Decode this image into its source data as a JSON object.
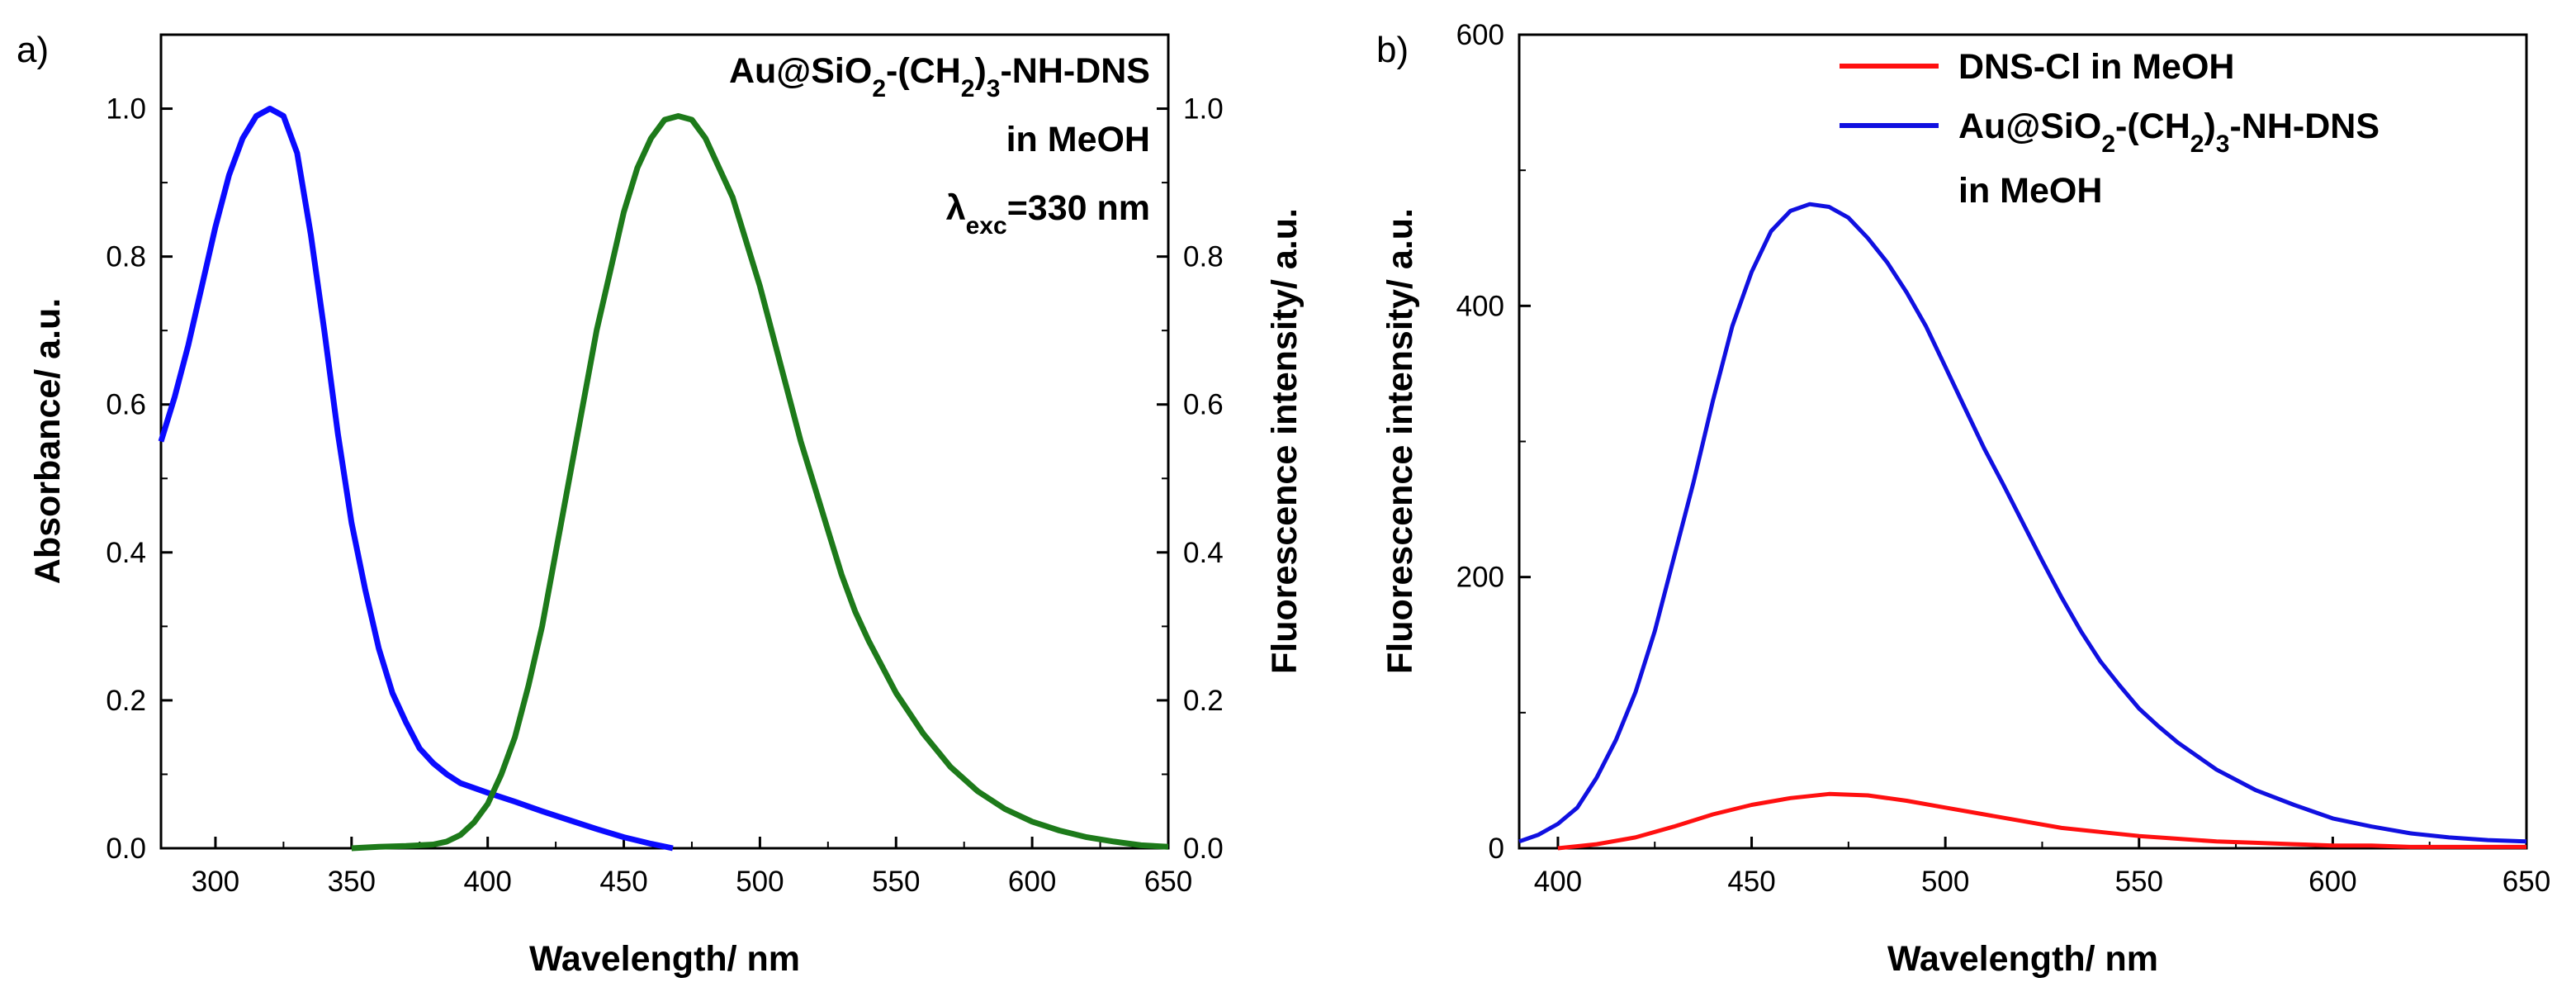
{
  "chart_data": [
    {
      "panel_label": "a)",
      "type": "line",
      "xlabel": "Wavelength/ nm",
      "ylabel_left": "Absorbance/ a.u.",
      "ylabel_right": "Fluorescence intensity/ a.u.",
      "xlim": [
        280,
        650
      ],
      "ylim_left": [
        0,
        1.1
      ],
      "ylim_right": [
        0,
        1.1
      ],
      "x_ticks": [
        "300",
        "350",
        "400",
        "450",
        "500",
        "550",
        "600",
        "650"
      ],
      "y_ticks_left": [
        "0.0",
        "0.2",
        "0.4",
        "0.6",
        "0.8",
        "1.0"
      ],
      "y_ticks_right": [
        "0.0",
        "0.2",
        "0.4",
        "0.6",
        "0.8",
        "1.0"
      ],
      "annotation": {
        "line1_main": "Au@SiO",
        "line1_sub1": "2",
        "line1_mid": "-(CH",
        "line1_sub2": "2",
        "line1_mid2": ")",
        "line1_sub3": "3",
        "line1_end": "-NH-DNS",
        "line2": "in MeOH",
        "line3_main": "λ",
        "line3_sub": "exc",
        "line3_end": "=330 nm"
      },
      "series": [
        {
          "name": "Absorbance",
          "axis": "left",
          "color": "#0b0bff",
          "x": [
            280,
            285,
            290,
            295,
            300,
            305,
            310,
            315,
            320,
            325,
            330,
            335,
            340,
            345,
            350,
            355,
            360,
            365,
            370,
            375,
            380,
            385,
            390,
            400,
            410,
            420,
            430,
            440,
            450,
            460,
            468
          ],
          "y": [
            0.55,
            0.61,
            0.68,
            0.76,
            0.84,
            0.91,
            0.96,
            0.99,
            1.0,
            0.99,
            0.94,
            0.83,
            0.7,
            0.56,
            0.44,
            0.35,
            0.27,
            0.21,
            0.17,
            0.135,
            0.115,
            0.1,
            0.088,
            0.075,
            0.063,
            0.05,
            0.038,
            0.026,
            0.015,
            0.006,
            0.0
          ]
        },
        {
          "name": "Fluorescence",
          "axis": "right",
          "color": "#1d7a1a",
          "x": [
            350,
            360,
            370,
            380,
            385,
            390,
            395,
            400,
            405,
            410,
            415,
            420,
            425,
            430,
            435,
            440,
            445,
            450,
            455,
            460,
            465,
            470,
            475,
            480,
            485,
            490,
            495,
            500,
            505,
            510,
            515,
            520,
            525,
            530,
            535,
            540,
            545,
            550,
            560,
            570,
            580,
            590,
            600,
            610,
            620,
            630,
            640,
            650
          ],
          "y": [
            0.0,
            0.002,
            0.003,
            0.005,
            0.009,
            0.018,
            0.035,
            0.06,
            0.1,
            0.15,
            0.22,
            0.3,
            0.4,
            0.5,
            0.6,
            0.7,
            0.78,
            0.86,
            0.92,
            0.96,
            0.985,
            0.99,
            0.985,
            0.96,
            0.92,
            0.88,
            0.82,
            0.76,
            0.69,
            0.62,
            0.55,
            0.49,
            0.43,
            0.37,
            0.32,
            0.28,
            0.245,
            0.21,
            0.155,
            0.11,
            0.077,
            0.053,
            0.036,
            0.024,
            0.015,
            0.009,
            0.004,
            0.002
          ]
        }
      ]
    },
    {
      "panel_label": "b)",
      "type": "line",
      "xlabel": "Wavelength/ nm",
      "ylabel": "Fluorescence intensity/ a.u.",
      "xlim": [
        390,
        650
      ],
      "ylim": [
        0,
        600
      ],
      "x_ticks": [
        "400",
        "450",
        "500",
        "550",
        "600",
        "650"
      ],
      "y_ticks": [
        "0",
        "200",
        "400",
        "600"
      ],
      "legend_position": "top-right",
      "legend": {
        "entry1": "DNS-Cl in MeOH",
        "entry2_main": "Au@SiO",
        "entry2_sub1": "2",
        "entry2_mid": "-(CH",
        "entry2_sub2": "2",
        "entry2_mid2": ")",
        "entry2_sub3": "3",
        "entry2_end": "-NH-DNS",
        "entry2_line2": "in MeOH"
      },
      "series": [
        {
          "name": "DNS-Cl in MeOH",
          "color": "#ff1010",
          "x": [
            400,
            410,
            420,
            430,
            440,
            450,
            460,
            470,
            480,
            490,
            500,
            510,
            520,
            530,
            540,
            550,
            560,
            570,
            580,
            590,
            600,
            610,
            620,
            630,
            640,
            650
          ],
          "y": [
            0,
            3,
            8,
            16,
            25,
            32,
            37,
            40,
            39,
            35,
            30,
            25,
            20,
            15,
            12,
            9,
            7,
            5,
            4,
            3,
            2,
            2,
            1,
            1,
            1,
            1
          ]
        },
        {
          "name": "Au@SiO2-(CH2)3-NH-DNS in MeOH",
          "color": "#1010e0",
          "x": [
            390,
            395,
            400,
            405,
            410,
            415,
            420,
            425,
            430,
            435,
            440,
            445,
            450,
            455,
            460,
            465,
            470,
            475,
            480,
            485,
            490,
            495,
            500,
            505,
            510,
            515,
            520,
            525,
            530,
            535,
            540,
            545,
            550,
            555,
            560,
            570,
            580,
            590,
            600,
            610,
            620,
            630,
            640,
            650
          ],
          "y": [
            5,
            10,
            18,
            30,
            52,
            80,
            115,
            160,
            215,
            270,
            330,
            385,
            425,
            455,
            470,
            475,
            473,
            465,
            450,
            432,
            410,
            385,
            355,
            325,
            295,
            268,
            240,
            212,
            185,
            160,
            138,
            120,
            103,
            90,
            78,
            58,
            43,
            32,
            22,
            16,
            11,
            8,
            6,
            5
          ]
        }
      ]
    }
  ]
}
